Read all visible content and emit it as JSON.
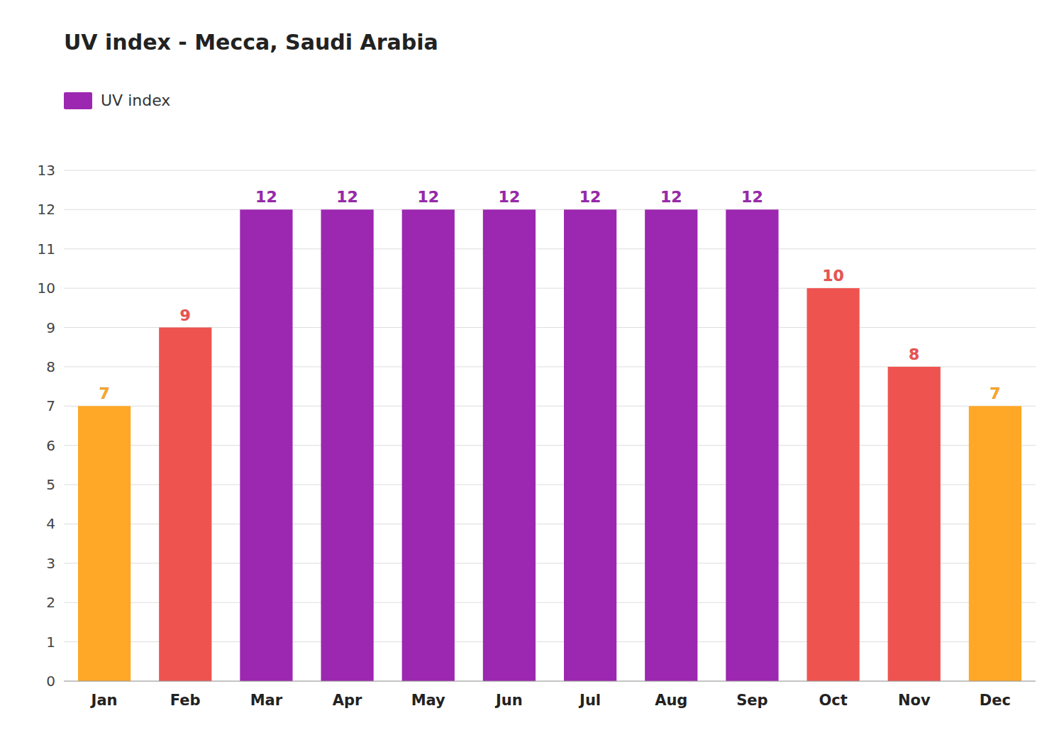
{
  "chart_data": {
    "type": "bar",
    "title": "UV index - Mecca, Saudi Arabia",
    "categories": [
      "Jan",
      "Feb",
      "Mar",
      "Apr",
      "May",
      "Jun",
      "Jul",
      "Aug",
      "Sep",
      "Oct",
      "Nov",
      "Dec"
    ],
    "series": [
      {
        "name": "UV index",
        "color": "#9C27B0",
        "colors": [
          "#FFA726",
          "#EF5350",
          "#9C27B0",
          "#9C27B0",
          "#9C27B0",
          "#9C27B0",
          "#9C27B0",
          "#9C27B0",
          "#9C27B0",
          "#EF5350",
          "#EF5350",
          "#FFA726"
        ],
        "values": [
          7,
          9,
          12,
          12,
          12,
          12,
          12,
          12,
          12,
          10,
          8,
          7
        ]
      }
    ],
    "ylim": [
      0,
      13
    ],
    "yticks": [
      0,
      1,
      2,
      3,
      4,
      5,
      6,
      7,
      8,
      9,
      10,
      11,
      12,
      13
    ],
    "grid": true,
    "legend": "upper left",
    "data_labels": true
  }
}
